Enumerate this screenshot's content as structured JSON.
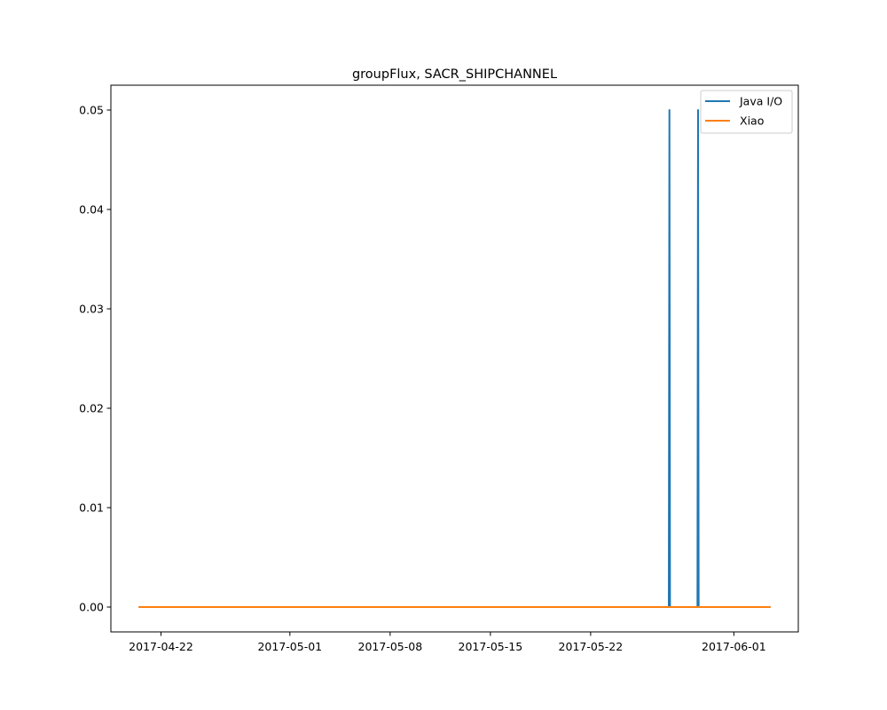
{
  "chart_data": {
    "type": "line",
    "title": "groupFlux, SACR_SHIPCHANNEL",
    "xlabel": "",
    "ylabel": "",
    "x_type": "date",
    "xlim": [
      "2017-04-18T12:00",
      "2017-06-05T12:00"
    ],
    "ylim": [
      -0.0025,
      0.0525
    ],
    "x_ticks": [
      "2017-04-22",
      "2017-05-01",
      "2017-05-08",
      "2017-05-15",
      "2017-05-22",
      "2017-06-01"
    ],
    "y_ticks": [
      "0.00",
      "0.01",
      "0.02",
      "0.03",
      "0.04",
      "0.05"
    ],
    "y_tick_values": [
      0,
      0.01,
      0.02,
      0.03,
      0.04,
      0.05
    ],
    "grid": false,
    "legend_position": "top-right",
    "series": [
      {
        "name": "Java I/O",
        "color": "#1f77b4",
        "points": [
          [
            "2017-04-20T12:00",
            0.0
          ],
          [
            "2017-05-27T11:00",
            0.0
          ],
          [
            "2017-05-27T12:00",
            0.05
          ],
          [
            "2017-05-27T13:00",
            0.0
          ],
          [
            "2017-05-29T11:00",
            0.0
          ],
          [
            "2017-05-29T12:00",
            0.05
          ],
          [
            "2017-05-29T13:00",
            0.0
          ],
          [
            "2017-06-03T12:00",
            0.0
          ]
        ]
      },
      {
        "name": "Xiao",
        "color": "#ff7f0e",
        "points": [
          [
            "2017-04-20T12:00",
            0.0
          ],
          [
            "2017-06-03T12:00",
            0.0
          ]
        ]
      }
    ]
  }
}
